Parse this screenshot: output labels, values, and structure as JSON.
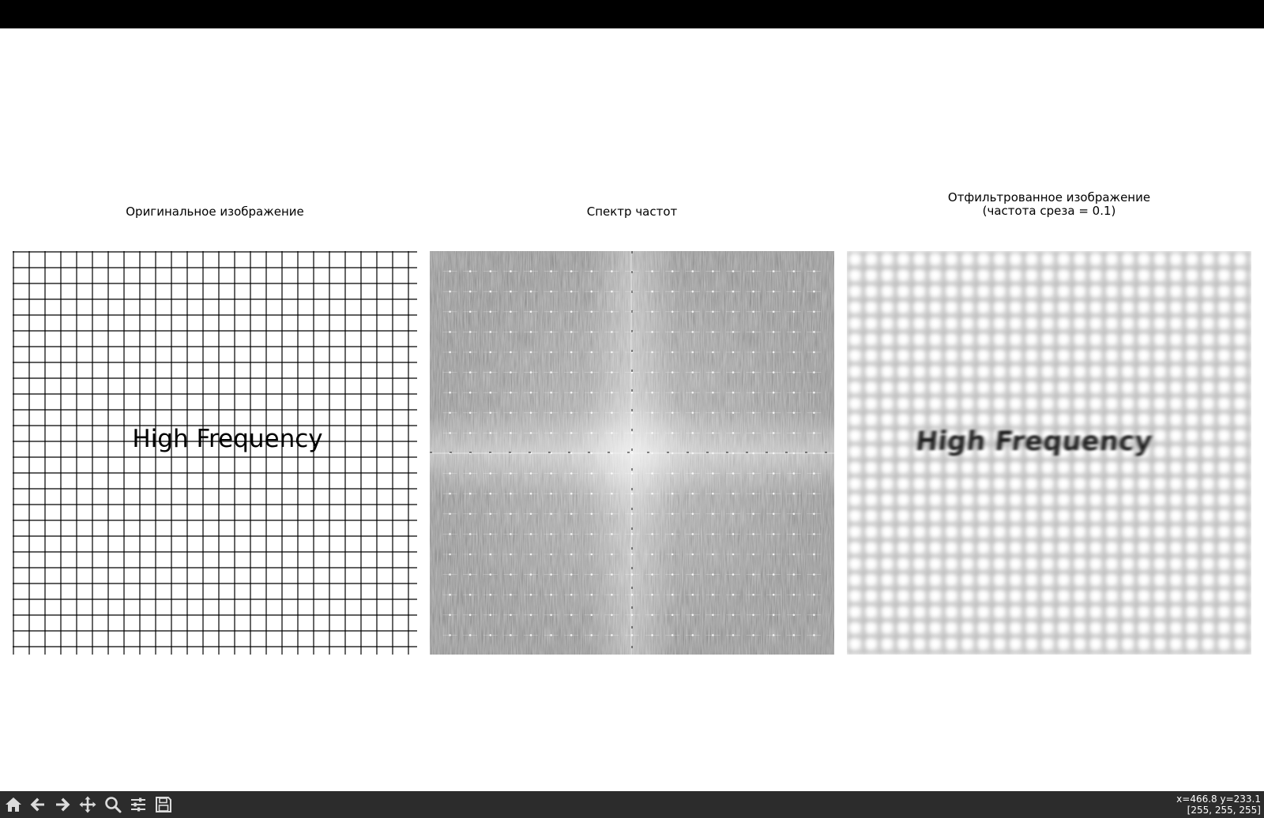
{
  "figure": {
    "panels": [
      {
        "title_line1": "Оригинальное изображение",
        "title_line2": ""
      },
      {
        "title_line1": "Спектр частот",
        "title_line2": ""
      },
      {
        "title_line1": "Отфильтрованное изображение",
        "title_line2": "(частота среза = 0.1)"
      }
    ],
    "original_text": "High Frequency",
    "filtered_text": "High Frequency"
  },
  "toolbar": {
    "buttons": [
      {
        "name": "home-icon"
      },
      {
        "name": "back-arrow-icon"
      },
      {
        "name": "forward-arrow-icon"
      },
      {
        "name": "pan-icon"
      },
      {
        "name": "zoom-icon"
      },
      {
        "name": "configure-subplots-icon"
      },
      {
        "name": "save-icon"
      }
    ],
    "status_line1": "x=466.8 y=233.1",
    "status_line2": "[255, 255, 255]"
  },
  "colors": {
    "titlebar": "#000000",
    "toolbar": "#2c2c2c",
    "toolbar_icon": "#dcdcdc"
  }
}
